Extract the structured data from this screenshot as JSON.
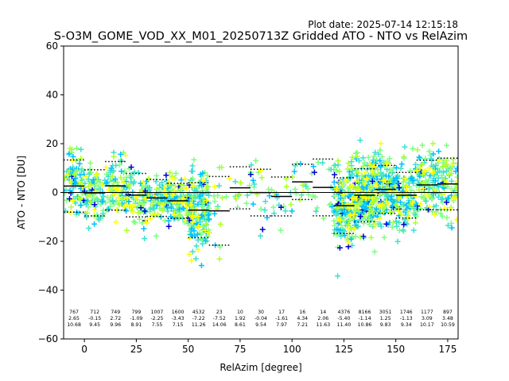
{
  "header": {
    "plot_date": "Plot date: 2025-07-14 12:15:18",
    "title": "S-O3M_GOME_VOD_XX_M01_20250713Z Gridded ATO - NTO vs RelAzim"
  },
  "chart_data": {
    "type": "scatter",
    "xlabel": "RelAzim [degree]",
    "ylabel": "ATO - NTO [DU]",
    "xlim": [
      -10,
      180
    ],
    "ylim": [
      -60,
      60
    ],
    "xticks": [
      0,
      25,
      50,
      75,
      100,
      125,
      150,
      175
    ],
    "yticks": [
      -60,
      -40,
      -20,
      0,
      20,
      40,
      60
    ],
    "zero_line": 0,
    "marker": "+",
    "colors": [
      "#0000cd",
      "#00bfff",
      "#40e0d0",
      "#7fff7f",
      "#adff2f",
      "#ffff00"
    ],
    "bins": [
      {
        "x": -5,
        "count": "767",
        "mean": "2.65",
        "std": "10.68"
      },
      {
        "x": 5,
        "count": "712",
        "mean": "-0.15",
        "std": "9.45"
      },
      {
        "x": 15,
        "count": "749",
        "mean": "2.72",
        "std": "9.96"
      },
      {
        "x": 25,
        "count": "799",
        "mean": "-1.09",
        "std": "8.91"
      },
      {
        "x": 35,
        "count": "1007",
        "mean": "-2.25",
        "std": "7.55"
      },
      {
        "x": 45,
        "count": "1600",
        "mean": "-3.43",
        "std": "7.15"
      },
      {
        "x": 55,
        "count": "4532",
        "mean": "-7.22",
        "std": "11.26"
      },
      {
        "x": 65,
        "count": "23",
        "mean": "-7.52",
        "std": "14.06"
      },
      {
        "x": 75,
        "count": "10",
        "mean": "1.92",
        "std": "8.61"
      },
      {
        "x": 85,
        "count": "30",
        "mean": "-0.04",
        "std": "9.54"
      },
      {
        "x": 95,
        "count": "17",
        "mean": "-1.61",
        "std": "7.97"
      },
      {
        "x": 105,
        "count": "16",
        "mean": "4.34",
        "std": "7.21"
      },
      {
        "x": 115,
        "count": "14",
        "mean": "2.06",
        "std": "11.63"
      },
      {
        "x": 125,
        "count": "4376",
        "mean": "-5.40",
        "std": "11.40"
      },
      {
        "x": 135,
        "count": "8166",
        "mean": "-1.14",
        "std": "10.86"
      },
      {
        "x": 145,
        "count": "3051",
        "mean": "1.25",
        "std": "9.83"
      },
      {
        "x": 155,
        "count": "1746",
        "mean": "-1.13",
        "std": "9.34"
      },
      {
        "x": 165,
        "count": "1177",
        "mean": "3.09",
        "std": "10.17"
      },
      {
        "x": 175,
        "count": "897",
        "mean": "3.48",
        "std": "10.59"
      }
    ]
  }
}
